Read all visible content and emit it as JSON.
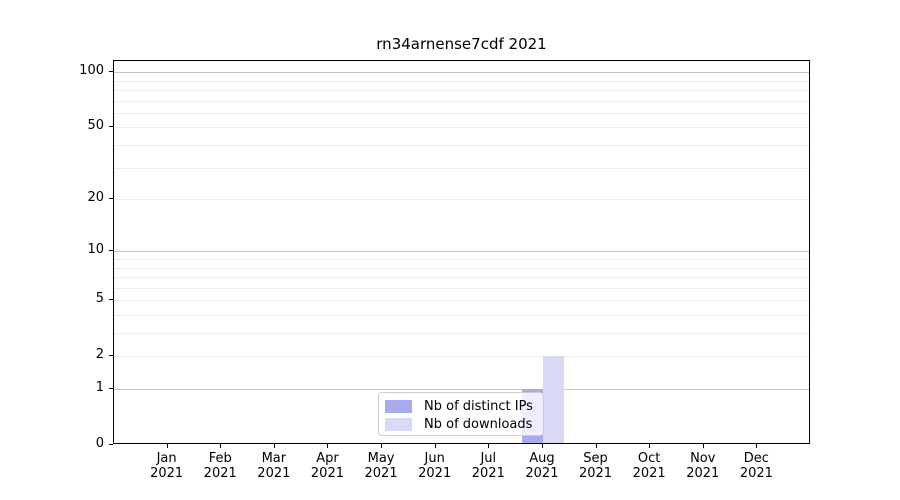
{
  "chart_data": {
    "type": "bar",
    "title": "rn34arnense7cdf 2021",
    "x_categories": [
      "Jan",
      "Feb",
      "Mar",
      "Apr",
      "May",
      "Jun",
      "Jul",
      "Aug",
      "Sep",
      "Oct",
      "Nov",
      "Dec"
    ],
    "x_year": "2021",
    "series": [
      {
        "name": "Nb of distinct IPs",
        "color": "#a9a9ee",
        "values": [
          0,
          0,
          0,
          0,
          0,
          0,
          0,
          1,
          0,
          0,
          0,
          0
        ]
      },
      {
        "name": "Nb of downloads",
        "color": "#d9d9f6",
        "values": [
          0,
          0,
          0,
          0,
          0,
          0,
          0,
          2,
          0,
          0,
          0,
          0
        ]
      }
    ],
    "y_scale": "log1p",
    "ylim": [
      0,
      115
    ],
    "y_tick_values": [
      0,
      1,
      2,
      5,
      10,
      20,
      50,
      100
    ],
    "y_major_grid": [
      1,
      10,
      100
    ],
    "y_minor_grid": [
      2,
      3,
      4,
      5,
      6,
      7,
      8,
      9,
      20,
      30,
      40,
      50,
      60,
      70,
      80,
      90
    ],
    "grid": true,
    "legend_location": "lower center",
    "colors": {
      "axis": "#000000",
      "major_grid": "#c6c6c6",
      "minor_grid": "#ececec",
      "legend_border": "#cccccc"
    }
  }
}
